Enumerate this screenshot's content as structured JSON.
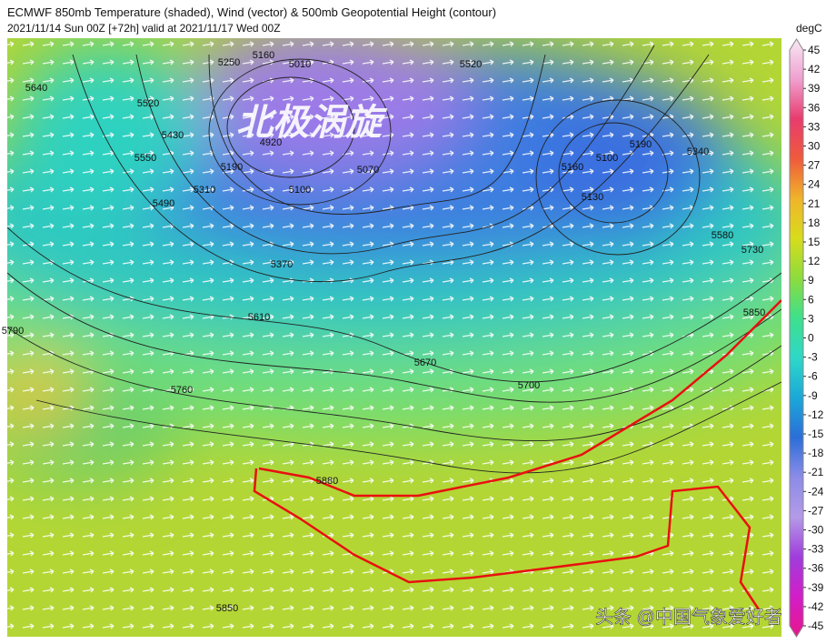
{
  "header": {
    "title": "ECMWF 850mb Temperature (shaded), Wind (vector) & 500mb Geopotential Height (contour)",
    "subtitle": "2021/11/14 Sun 00Z [+72h] valid at 2021/11/17 Wed 00Z"
  },
  "colorbar": {
    "unit": "degC",
    "lim": [
      -45,
      45
    ],
    "ticks": [
      45,
      42,
      39,
      36,
      33,
      30,
      27,
      24,
      21,
      18,
      15,
      12,
      9,
      6,
      3,
      0,
      -3,
      -6,
      -9,
      -12,
      -15,
      -18,
      -21,
      -24,
      -27,
      -30,
      -33,
      -36,
      -39,
      -42,
      -45
    ],
    "colors": [
      "#e8168c",
      "#d21ec8",
      "#a03cdc",
      "#b49ae8",
      "#8c8ce8",
      "#2c6ed8",
      "#1aa8d8",
      "#2ed8c8",
      "#3ee08c",
      "#8cdc3c",
      "#d8dc1c",
      "#f0b42a",
      "#f05a3c",
      "#e83c6e",
      "#f0a0d0",
      "#f8e8f4"
    ]
  },
  "map": {
    "overlay_text": "北极涡旋",
    "watermark": "头条 @中国气象爱好者",
    "contour_labels": [
      "5250",
      "5160",
      "5010",
      "5520",
      "5640",
      "5520",
      "5550",
      "5430",
      "4920",
      "5190",
      "5310",
      "5490",
      "5070",
      "5100",
      "5160",
      "5100",
      "5190",
      "5340",
      "5130",
      "5580",
      "5730",
      "5370",
      "5610",
      "5850",
      "5670",
      "5760",
      "5700",
      "5790",
      "5880",
      "5850"
    ]
  }
}
